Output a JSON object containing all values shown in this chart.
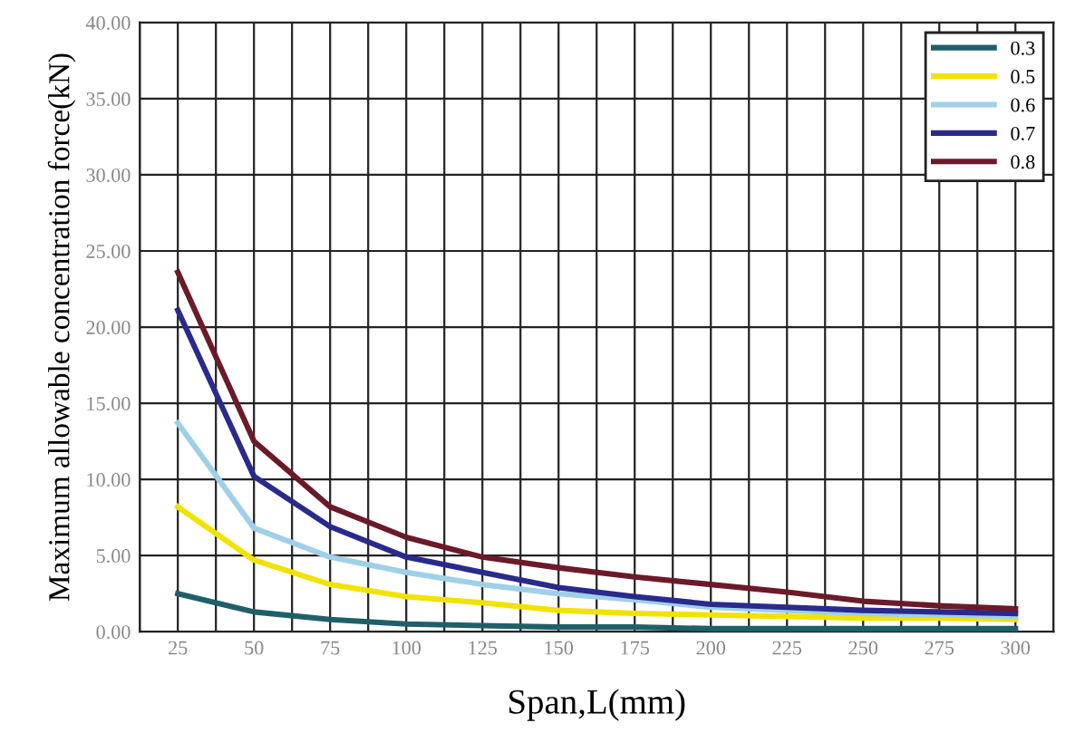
{
  "chart_data": {
    "type": "line",
    "xlabel": "Span,L(mm)",
    "ylabel": "Maximum allowable concentration force(kN)",
    "categories": [
      "25",
      "50",
      "75",
      "100",
      "125",
      "150",
      "175",
      "200",
      "225",
      "250",
      "275",
      "300"
    ],
    "series": [
      {
        "name": "0.3",
        "color": "#1f5f6a",
        "values": [
          2.5,
          1.3,
          0.8,
          0.5,
          0.4,
          0.3,
          0.3,
          0.2,
          0.2,
          0.2,
          0.2,
          0.2
        ]
      },
      {
        "name": "0.5",
        "color": "#f2e200",
        "values": [
          8.2,
          4.7,
          3.1,
          2.3,
          1.9,
          1.4,
          1.2,
          1.1,
          1.0,
          0.9,
          0.9,
          0.8
        ]
      },
      {
        "name": "0.6",
        "color": "#9fd0e8",
        "values": [
          13.7,
          6.8,
          4.9,
          3.9,
          3.1,
          2.5,
          2.1,
          1.6,
          1.4,
          1.2,
          1.1,
          1.0
        ]
      },
      {
        "name": "0.7",
        "color": "#2a2a8c",
        "values": [
          21.1,
          10.2,
          6.9,
          4.9,
          3.9,
          2.9,
          2.3,
          1.8,
          1.6,
          1.4,
          1.3,
          1.2
        ]
      },
      {
        "name": "0.8",
        "color": "#6b1a2a",
        "values": [
          23.6,
          12.5,
          8.2,
          6.2,
          4.9,
          4.2,
          3.6,
          3.1,
          2.6,
          2.0,
          1.7,
          1.5
        ]
      }
    ],
    "ylim": [
      0,
      40
    ],
    "yticks": [
      {
        "value": 0,
        "label": "0.00"
      },
      {
        "value": 5,
        "label": "5.00"
      },
      {
        "value": 10,
        "label": "10.00"
      },
      {
        "value": 15,
        "label": "15.00"
      },
      {
        "value": 20,
        "label": "20.00"
      },
      {
        "value": 25,
        "label": "25.00"
      },
      {
        "value": 30,
        "label": "30.00"
      },
      {
        "value": 35,
        "label": "35.00"
      },
      {
        "value": 40,
        "label": "40.00"
      }
    ],
    "grid": true,
    "legend": "top right",
    "marker": "none",
    "line_style": "solid"
  }
}
